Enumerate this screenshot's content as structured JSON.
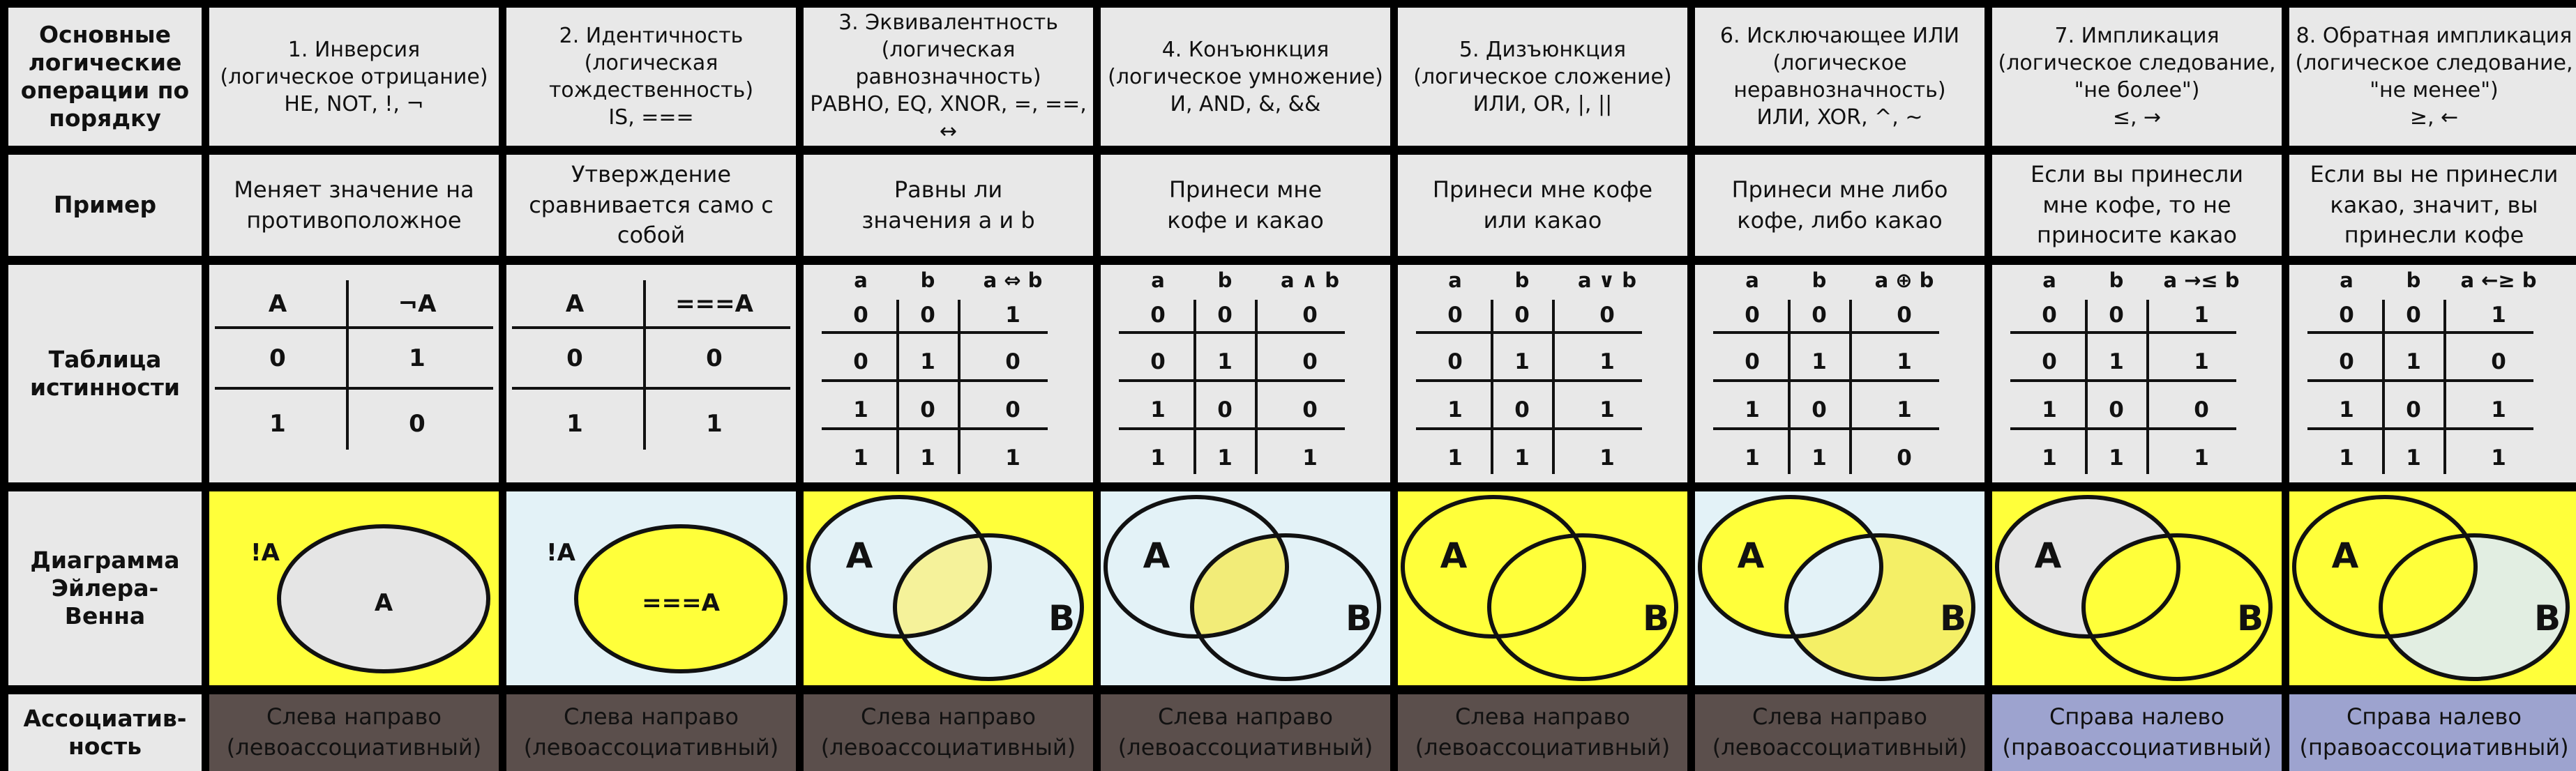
{
  "row_headers": {
    "ops": "Основные логические операции по порядку",
    "example": "Пример",
    "truth": "Таблица истинности",
    "venn": "Диаграмма Эйлера-Венна",
    "assoc": "Ассоциатив-ность"
  },
  "operations": [
    {
      "name": "1. Инверсия\n(логическое отрицание)\nНЕ, NOT, !, ¬",
      "example": "Меняет значение на противоположное",
      "assoc": "Слева направо\n(левоассоциативный)",
      "assoc_type": "left",
      "venn_type": "not",
      "venn_labels": [
        "!A",
        "A"
      ],
      "truth": {
        "headers": [
          "A",
          "¬A"
        ],
        "rows": [
          [
            "0",
            "1"
          ],
          [
            "1",
            "0"
          ]
        ]
      }
    },
    {
      "name": "2. Идентичность\n(логическая тождественность)\nIS, ===",
      "example": "Утверждение сравнивается само с собой",
      "assoc": "Слева направо\n(левоассоциативный)",
      "assoc_type": "left",
      "venn_type": "ident",
      "venn_labels": [
        "!A",
        "===A"
      ],
      "truth": {
        "headers": [
          "A",
          "===A"
        ],
        "rows": [
          [
            "0",
            "0"
          ],
          [
            "1",
            "1"
          ]
        ]
      }
    },
    {
      "name": "3. Эквивалентность\n(логическая равнозначность)\nРАВНО, EQ, XNOR, =, ==, ↔",
      "example": "Равны ли\nзначения a и b",
      "assoc": "Слева направо\n(левоассоциативный)",
      "assoc_type": "left",
      "venn_type": "xnor",
      "venn_labels": [
        "A",
        "B"
      ],
      "truth": {
        "headers": [
          "a",
          "b",
          "a ⇔ b"
        ],
        "rows": [
          [
            "0",
            "0",
            "1"
          ],
          [
            "0",
            "1",
            "0"
          ],
          [
            "1",
            "0",
            "0"
          ],
          [
            "1",
            "1",
            "1"
          ]
        ]
      }
    },
    {
      "name": "4. Конъюнкция\n(логическое умножение)\nИ, AND, &, &&",
      "example": "Принеси мне\nкофе и какао",
      "assoc": "Слева направо\n(левоассоциативный)",
      "assoc_type": "left",
      "venn_type": "and",
      "venn_labels": [
        "A",
        "B"
      ],
      "truth": {
        "headers": [
          "a",
          "b",
          "a ∧ b"
        ],
        "rows": [
          [
            "0",
            "0",
            "0"
          ],
          [
            "0",
            "1",
            "0"
          ],
          [
            "1",
            "0",
            "0"
          ],
          [
            "1",
            "1",
            "1"
          ]
        ]
      }
    },
    {
      "name": "5. Дизъюнкция\n(логическое сложение)\nИЛИ, OR, |, ||",
      "example": "Принеси мне кофе\nили какао",
      "assoc": "Слева направо\n(левоассоциативный)",
      "assoc_type": "left",
      "venn_type": "or",
      "venn_labels": [
        "A",
        "B"
      ],
      "truth": {
        "headers": [
          "a",
          "b",
          "a ∨ b"
        ],
        "rows": [
          [
            "0",
            "0",
            "0"
          ],
          [
            "0",
            "1",
            "1"
          ],
          [
            "1",
            "0",
            "1"
          ],
          [
            "1",
            "1",
            "1"
          ]
        ]
      }
    },
    {
      "name": "6. Исключающее ИЛИ\n(логическое неравнозначность)\nИЛИ, XOR, ^, ~",
      "example": "Принеси мне либо\nкофе, либо какао",
      "assoc": "Слева направо\n(левоассоциативный)",
      "assoc_type": "left",
      "venn_type": "xor",
      "venn_labels": [
        "A",
        "B"
      ],
      "truth": {
        "headers": [
          "a",
          "b",
          "a ⊕ b"
        ],
        "rows": [
          [
            "0",
            "0",
            "0"
          ],
          [
            "0",
            "1",
            "1"
          ],
          [
            "1",
            "0",
            "1"
          ],
          [
            "1",
            "1",
            "0"
          ]
        ]
      }
    },
    {
      "name": "7. Импликация\n(логическое следование,\n\"не более\")\n≤, →",
      "example": "Если вы принесли\nмне кофе, то не\nприносите какао",
      "assoc": "Справа налево\n(правоассоциативный)",
      "assoc_type": "right",
      "venn_type": "impl",
      "venn_labels": [
        "A",
        "B"
      ],
      "truth": {
        "headers": [
          "a",
          "b",
          "a →≤ b"
        ],
        "rows": [
          [
            "0",
            "0",
            "1"
          ],
          [
            "0",
            "1",
            "1"
          ],
          [
            "1",
            "0",
            "0"
          ],
          [
            "1",
            "1",
            "1"
          ]
        ]
      }
    },
    {
      "name": "8. Обратная импликация\n(логическое следование,\n\"не менее\")\n≥, ←",
      "example": "Если вы не принесли\nкакао, значит, вы\nпринесли кофе",
      "assoc": "Справа налево\n(правоассоциативный)",
      "assoc_type": "right",
      "venn_type": "rimpl",
      "venn_labels": [
        "A",
        "B"
      ],
      "truth": {
        "headers": [
          "a",
          "b",
          "a ←≥ b"
        ],
        "rows": [
          [
            "0",
            "0",
            "1"
          ],
          [
            "0",
            "1",
            "0"
          ],
          [
            "1",
            "0",
            "1"
          ],
          [
            "1",
            "1",
            "1"
          ]
        ]
      }
    }
  ],
  "colors": {
    "yellow": "#ffff3a",
    "light_blue": "#e3f2f7",
    "grey_circle": "#e5e5e5",
    "left_assoc": "#5b4f4c",
    "right_assoc": "#9da3cf",
    "cell_bg": "#e8e8e8"
  }
}
